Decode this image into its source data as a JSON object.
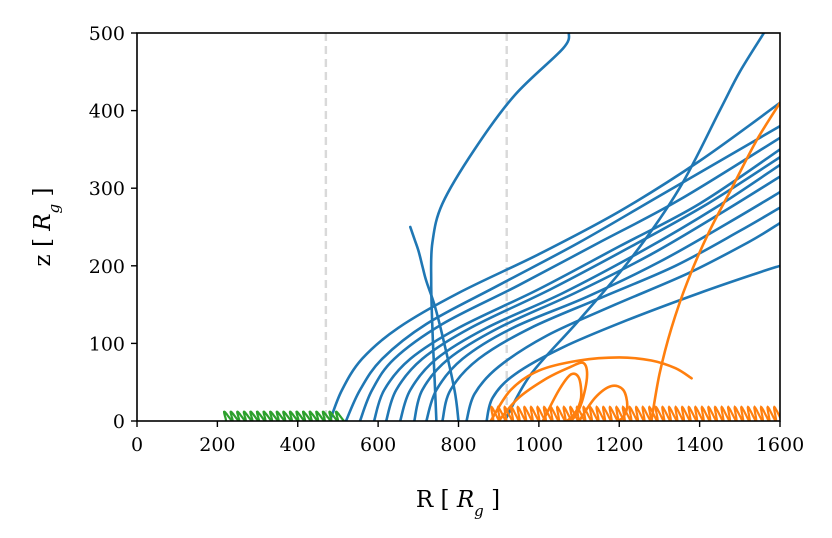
{
  "chart_data": {
    "type": "line",
    "xlabel": "R [ R_g ]",
    "ylabel": "z [ R_g ]",
    "xlabel_parts": [
      "R [ ",
      "R",
      "g",
      " ]"
    ],
    "ylabel_parts": [
      "z [ ",
      "R",
      "g",
      " ]"
    ],
    "xlim": [
      0,
      1600
    ],
    "ylim": [
      0,
      500
    ],
    "xticks": [
      0,
      200,
      400,
      600,
      800,
      1000,
      1200,
      1400,
      1600
    ],
    "yticks": [
      0,
      100,
      200,
      300,
      400,
      500
    ],
    "xtick_labels": [
      "0",
      "200",
      "400",
      "600",
      "800",
      "1000",
      "1200",
      "1400",
      "1600"
    ],
    "ytick_labels": [
      "0",
      "100",
      "200",
      "300",
      "400",
      "500"
    ],
    "grid": false,
    "vlines": [
      {
        "x": 470,
        "style": "dashed",
        "color": "#d9d9d9"
      },
      {
        "x": 920,
        "style": "dashed",
        "color": "#d9d9d9"
      }
    ],
    "colors": {
      "blue": "#1f77b4",
      "orange": "#ff7f0e",
      "green": "#2ca02c"
    },
    "series": [
      {
        "color": "blue",
        "points": [
          [
            745,
            0
          ],
          [
            740,
            60
          ],
          [
            735,
            120
          ],
          [
            732,
            180
          ],
          [
            735,
            230
          ],
          [
            760,
            280
          ],
          [
            840,
            350
          ],
          [
            940,
            420
          ],
          [
            1060,
            480
          ],
          [
            1075,
            500
          ]
        ]
      },
      {
        "color": "blue",
        "points": [
          [
            800,
            0
          ],
          [
            790,
            40
          ],
          [
            760,
            110
          ],
          [
            740,
            150
          ],
          [
            720,
            180
          ],
          [
            710,
            200
          ],
          [
            700,
            220
          ],
          [
            690,
            235
          ],
          [
            680,
            250
          ]
        ]
      },
      {
        "color": "blue",
        "points": [
          [
            915,
            0
          ],
          [
            980,
            60
          ],
          [
            1100,
            130
          ],
          [
            1230,
            210
          ],
          [
            1350,
            300
          ],
          [
            1450,
            400
          ],
          [
            1500,
            450
          ],
          [
            1560,
            500
          ]
        ]
      },
      {
        "color": "blue",
        "points": [
          [
            480,
            0
          ],
          [
            510,
            40
          ],
          [
            560,
            80
          ],
          [
            650,
            120
          ],
          [
            800,
            165
          ],
          [
            1000,
            215
          ],
          [
            1200,
            270
          ],
          [
            1400,
            335
          ],
          [
            1600,
            410
          ]
        ]
      },
      {
        "color": "blue",
        "points": [
          [
            520,
            0
          ],
          [
            555,
            40
          ],
          [
            610,
            80
          ],
          [
            720,
            125
          ],
          [
            900,
            175
          ],
          [
            1100,
            230
          ],
          [
            1300,
            290
          ],
          [
            1600,
            380
          ]
        ]
      },
      {
        "color": "blue",
        "points": [
          [
            555,
            0
          ],
          [
            585,
            40
          ],
          [
            640,
            80
          ],
          [
            760,
            125
          ],
          [
            950,
            175
          ],
          [
            1150,
            230
          ],
          [
            1350,
            285
          ],
          [
            1600,
            365
          ]
        ]
      },
      {
        "color": "blue",
        "points": [
          [
            590,
            0
          ],
          [
            615,
            40
          ],
          [
            680,
            80
          ],
          [
            800,
            120
          ],
          [
            1000,
            170
          ],
          [
            1200,
            225
          ],
          [
            1400,
            280
          ],
          [
            1600,
            350
          ]
        ]
      },
      {
        "color": "blue",
        "points": [
          [
            620,
            0
          ],
          [
            645,
            40
          ],
          [
            710,
            80
          ],
          [
            830,
            120
          ],
          [
            1030,
            170
          ],
          [
            1230,
            225
          ],
          [
            1420,
            280
          ],
          [
            1600,
            340
          ]
        ]
      },
      {
        "color": "blue",
        "points": [
          [
            655,
            0
          ],
          [
            680,
            40
          ],
          [
            745,
            80
          ],
          [
            870,
            120
          ],
          [
            1060,
            165
          ],
          [
            1260,
            220
          ],
          [
            1440,
            275
          ],
          [
            1600,
            330
          ]
        ]
      },
      {
        "color": "blue",
        "points": [
          [
            690,
            0
          ],
          [
            710,
            40
          ],
          [
            775,
            80
          ],
          [
            900,
            120
          ],
          [
            1090,
            165
          ],
          [
            1280,
            215
          ],
          [
            1460,
            270
          ],
          [
            1600,
            315
          ]
        ]
      },
      {
        "color": "blue",
        "points": [
          [
            720,
            0
          ],
          [
            745,
            40
          ],
          [
            810,
            80
          ],
          [
            935,
            120
          ],
          [
            1120,
            160
          ],
          [
            1300,
            205
          ],
          [
            1470,
            255
          ],
          [
            1600,
            295
          ]
        ]
      },
      {
        "color": "blue",
        "points": [
          [
            760,
            0
          ],
          [
            780,
            40
          ],
          [
            850,
            80
          ],
          [
            980,
            120
          ],
          [
            1160,
            160
          ],
          [
            1340,
            200
          ],
          [
            1500,
            245
          ],
          [
            1600,
            275
          ]
        ]
      },
      {
        "color": "blue",
        "points": [
          [
            820,
            0
          ],
          [
            840,
            35
          ],
          [
            900,
            70
          ],
          [
            1020,
            110
          ],
          [
            1190,
            150
          ],
          [
            1370,
            190
          ],
          [
            1520,
            230
          ],
          [
            1600,
            255
          ]
        ]
      },
      {
        "color": "blue",
        "points": [
          [
            870,
            0
          ],
          [
            885,
            30
          ],
          [
            940,
            60
          ],
          [
            1060,
            95
          ],
          [
            1220,
            130
          ],
          [
            1400,
            165
          ],
          [
            1540,
            190
          ],
          [
            1600,
            200
          ]
        ]
      },
      {
        "color": "orange",
        "points": [
          [
            1280,
            0
          ],
          [
            1300,
            60
          ],
          [
            1330,
            120
          ],
          [
            1370,
            180
          ],
          [
            1420,
            240
          ],
          [
            1480,
            300
          ],
          [
            1540,
            360
          ],
          [
            1600,
            410
          ]
        ]
      },
      {
        "color": "orange",
        "points": [
          [
            880,
            0
          ],
          [
            930,
            40
          ],
          [
            1000,
            65
          ],
          [
            1100,
            78
          ],
          [
            1200,
            82
          ],
          [
            1280,
            78
          ],
          [
            1340,
            68
          ],
          [
            1380,
            55
          ]
        ]
      },
      {
        "color": "orange",
        "points": [
          [
            900,
            0
          ],
          [
            950,
            30
          ],
          [
            1020,
            55
          ],
          [
            1080,
            70
          ],
          [
            1110,
            75
          ],
          [
            1120,
            60
          ],
          [
            1110,
            30
          ],
          [
            1095,
            10
          ],
          [
            1080,
            0
          ]
        ]
      },
      {
        "color": "orange",
        "points": [
          [
            1010,
            0
          ],
          [
            1050,
            40
          ],
          [
            1080,
            60
          ],
          [
            1100,
            55
          ],
          [
            1105,
            30
          ],
          [
            1090,
            10
          ],
          [
            1070,
            0
          ]
        ]
      },
      {
        "color": "orange",
        "points": [
          [
            1100,
            0
          ],
          [
            1140,
            30
          ],
          [
            1180,
            45
          ],
          [
            1210,
            40
          ],
          [
            1220,
            20
          ],
          [
            1210,
            5
          ],
          [
            1195,
            0
          ]
        ]
      }
    ],
    "oscillations": [
      {
        "color": "orange",
        "x_start": 880,
        "x_end": 1600,
        "amplitude": 18,
        "loops": 44
      },
      {
        "color": "green",
        "x_start": 215,
        "x_end": 510,
        "amplitude": 12,
        "loops": 18
      }
    ]
  }
}
